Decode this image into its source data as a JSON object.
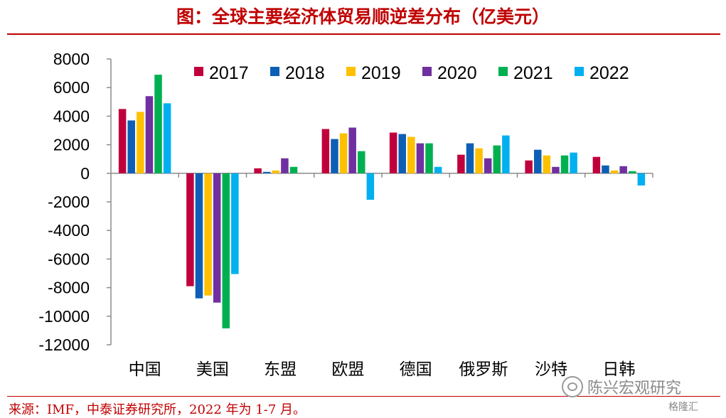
{
  "header": {
    "title": "图：全球主要经济体贸易顺逆差分布（亿美元）"
  },
  "footer": {
    "source": "来源：IMF，中泰证券研究所，2022 年为 1-7 月。",
    "watermark": "陈兴宏观研究",
    "watermark2": "格隆汇"
  },
  "chart_data": {
    "type": "bar",
    "title": "图：全球主要经济体贸易顺逆差分布（亿美元）",
    "xlabel": "",
    "ylabel": "",
    "ylim": [
      -12000,
      8000
    ],
    "yticks": [
      8000,
      6000,
      4000,
      2000,
      0,
      -2000,
      -4000,
      -6000,
      -8000,
      -10000,
      -12000
    ],
    "ytick_labels": [
      "8000",
      "6000",
      "4000",
      "2000",
      "0",
      "-2000",
      "-4000",
      "-6000",
      "-8000",
      "-10000",
      "-12000"
    ],
    "grid": false,
    "legend_position": "top",
    "categories": [
      "中国",
      "美国",
      "东盟",
      "欧盟",
      "德国",
      "俄罗斯",
      "沙特",
      "日韩"
    ],
    "series": [
      {
        "name": "2017",
        "color": "#c0003c",
        "values": [
          4500,
          -7900,
          350,
          3100,
          2850,
          1300,
          900,
          1150
        ]
      },
      {
        "name": "2018",
        "color": "#0d5fb5",
        "values": [
          3700,
          -8750,
          100,
          2400,
          2750,
          2100,
          1650,
          550
        ]
      },
      {
        "name": "2019",
        "color": "#ffc000",
        "values": [
          4300,
          -8550,
          200,
          2800,
          2550,
          1750,
          1250,
          200
        ]
      },
      {
        "name": "2020",
        "color": "#7030a0",
        "values": [
          5400,
          -9050,
          1050,
          3200,
          2100,
          1050,
          450,
          500
        ]
      },
      {
        "name": "2021",
        "color": "#00b050",
        "values": [
          6900,
          -10850,
          450,
          1550,
          2100,
          1950,
          1250,
          150
        ]
      },
      {
        "name": "2022",
        "color": "#00b0f0",
        "values": [
          4900,
          -7050,
          0,
          -1850,
          450,
          2650,
          1450,
          -850
        ]
      }
    ]
  }
}
